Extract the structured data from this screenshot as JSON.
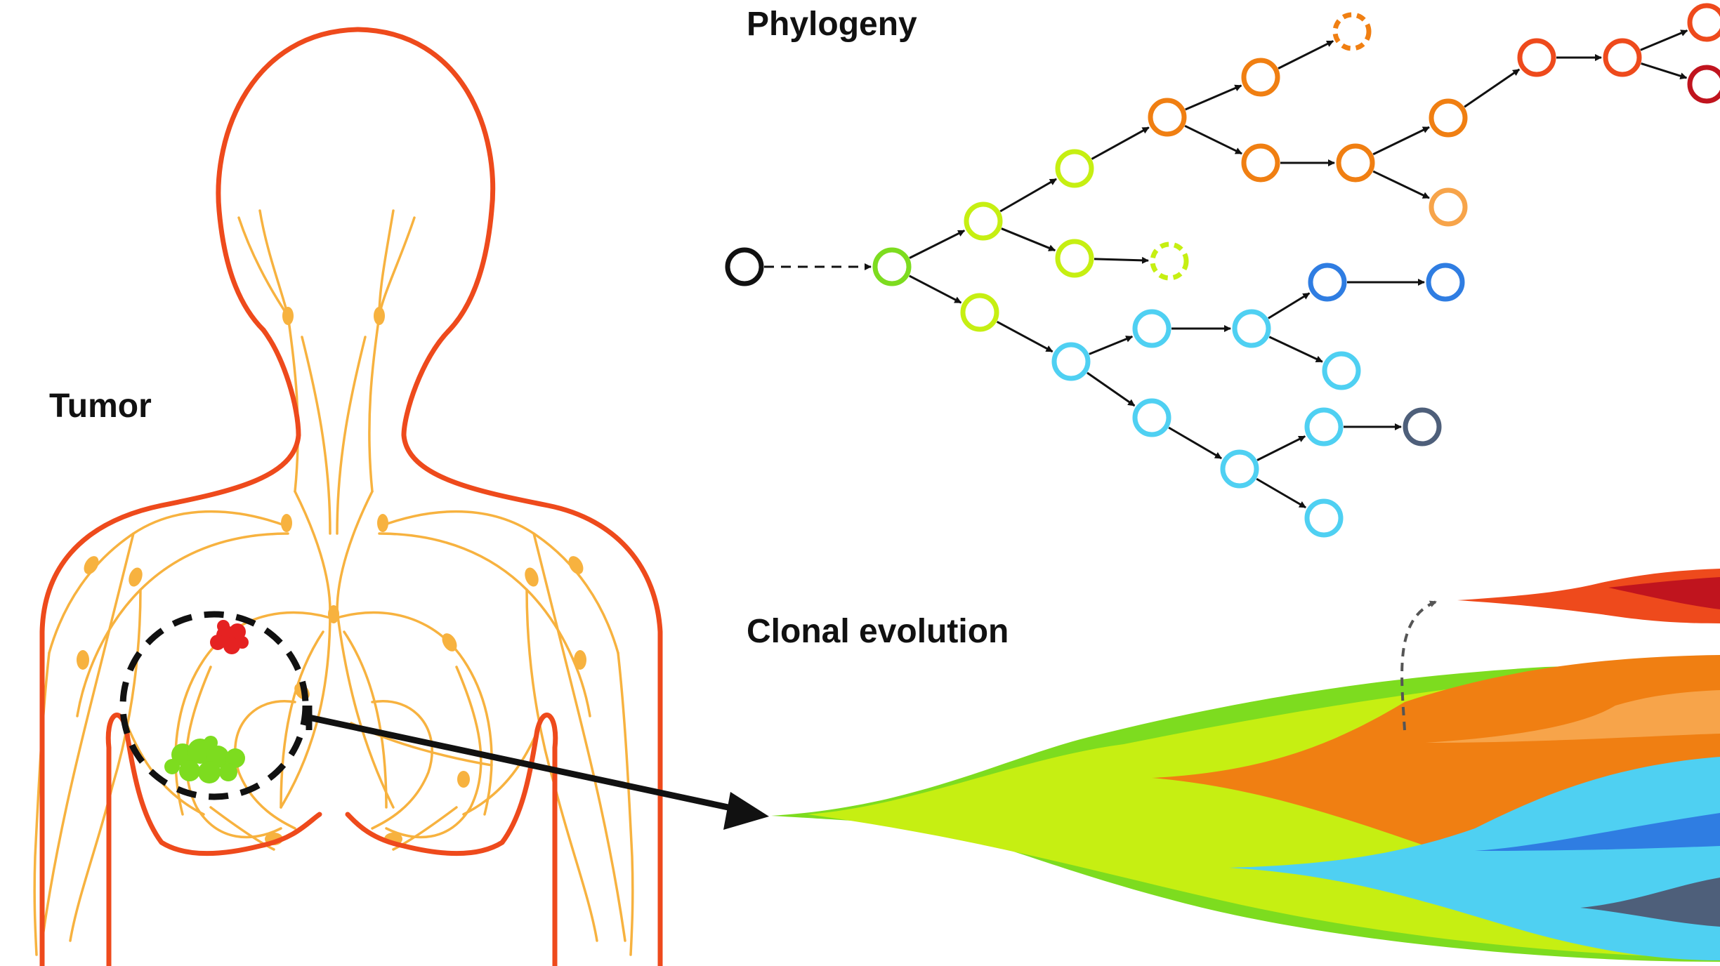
{
  "labels": {
    "tumor": "Tumor",
    "phylogeny": "Phylogeny",
    "clonal_evolution": "Clonal evolution"
  },
  "colors": {
    "body_outline": "#ee4a1c",
    "lymph": "#f7b23f",
    "tumor_red": "#e52222",
    "tumor_green": "#7ddc1f",
    "root": "#111111",
    "green": "#7ddc1f",
    "yellow_green": "#c6ef12",
    "orange": "#f07f12",
    "light_orange": "#f7a44a",
    "red_orange": "#ee4a1c",
    "dark_red": "#c0141e",
    "light_blue": "#4fd0f2",
    "blue": "#2f7de2",
    "slate": "#4e5f7a"
  },
  "phylogeny": {
    "nodes": [
      {
        "id": "root",
        "color": "root",
        "style": "solid"
      },
      {
        "id": "g1",
        "color": "green",
        "style": "solid"
      },
      {
        "id": "y1",
        "color": "yellow_green",
        "style": "solid"
      },
      {
        "id": "y2",
        "color": "yellow_green",
        "style": "solid"
      },
      {
        "id": "y3",
        "color": "yellow_green",
        "style": "solid"
      },
      {
        "id": "y4",
        "color": "yellow_green",
        "style": "dashed"
      },
      {
        "id": "y5",
        "color": "yellow_green",
        "style": "solid"
      },
      {
        "id": "o1",
        "color": "orange",
        "style": "solid"
      },
      {
        "id": "o2",
        "color": "orange",
        "style": "solid"
      },
      {
        "id": "o3",
        "color": "orange",
        "style": "dashed"
      },
      {
        "id": "o4",
        "color": "orange",
        "style": "solid"
      },
      {
        "id": "o5",
        "color": "orange",
        "style": "solid"
      },
      {
        "id": "o6",
        "color": "orange",
        "style": "solid"
      },
      {
        "id": "o7",
        "color": "light_orange",
        "style": "solid"
      },
      {
        "id": "r1",
        "color": "red_orange",
        "style": "solid"
      },
      {
        "id": "r2",
        "color": "red_orange",
        "style": "solid"
      },
      {
        "id": "r3",
        "color": "red_orange",
        "style": "solid"
      },
      {
        "id": "r4",
        "color": "dark_red",
        "style": "solid"
      },
      {
        "id": "b1",
        "color": "light_blue",
        "style": "solid"
      },
      {
        "id": "b2",
        "color": "light_blue",
        "style": "solid"
      },
      {
        "id": "b3",
        "color": "light_blue",
        "style": "solid"
      },
      {
        "id": "b4",
        "color": "blue",
        "style": "solid"
      },
      {
        "id": "b5",
        "color": "blue",
        "style": "solid"
      },
      {
        "id": "b6",
        "color": "light_blue",
        "style": "solid"
      },
      {
        "id": "b7",
        "color": "light_blue",
        "style": "solid"
      },
      {
        "id": "b8",
        "color": "light_blue",
        "style": "solid"
      },
      {
        "id": "b9",
        "color": "light_blue",
        "style": "solid"
      },
      {
        "id": "b10",
        "color": "slate",
        "style": "solid"
      },
      {
        "id": "b11",
        "color": "light_blue",
        "style": "solid"
      }
    ],
    "edges": [
      {
        "from": "root",
        "to": "g1",
        "style": "dashed"
      },
      {
        "from": "g1",
        "to": "y1",
        "style": "solid"
      },
      {
        "from": "g1",
        "to": "y5",
        "style": "solid"
      },
      {
        "from": "y1",
        "to": "y2",
        "style": "solid"
      },
      {
        "from": "y1",
        "to": "y3",
        "style": "solid"
      },
      {
        "from": "y3",
        "to": "y4",
        "style": "solid"
      },
      {
        "from": "y2",
        "to": "o1",
        "style": "solid"
      },
      {
        "from": "o1",
        "to": "o2",
        "style": "solid"
      },
      {
        "from": "o2",
        "to": "o3",
        "style": "solid"
      },
      {
        "from": "o1",
        "to": "o4",
        "style": "solid"
      },
      {
        "from": "o4",
        "to": "o5",
        "style": "solid"
      },
      {
        "from": "o5",
        "to": "o6",
        "style": "solid"
      },
      {
        "from": "o5",
        "to": "o7",
        "style": "solid"
      },
      {
        "from": "o6",
        "to": "r1",
        "style": "solid"
      },
      {
        "from": "r1",
        "to": "r2",
        "style": "solid"
      },
      {
        "from": "r2",
        "to": "r3",
        "style": "solid"
      },
      {
        "from": "r2",
        "to": "r4",
        "style": "solid"
      },
      {
        "from": "y5",
        "to": "b1",
        "style": "solid"
      },
      {
        "from": "b1",
        "to": "b2",
        "style": "solid"
      },
      {
        "from": "b2",
        "to": "b3",
        "style": "solid"
      },
      {
        "from": "b3",
        "to": "b4",
        "style": "solid"
      },
      {
        "from": "b4",
        "to": "b5",
        "style": "solid"
      },
      {
        "from": "b3",
        "to": "b6",
        "style": "solid"
      },
      {
        "from": "b1",
        "to": "b7",
        "style": "solid"
      },
      {
        "from": "b7",
        "to": "b8",
        "style": "solid"
      },
      {
        "from": "b8",
        "to": "b9",
        "style": "solid"
      },
      {
        "from": "b9",
        "to": "b10",
        "style": "solid"
      },
      {
        "from": "b8",
        "to": "b11",
        "style": "solid"
      }
    ]
  }
}
